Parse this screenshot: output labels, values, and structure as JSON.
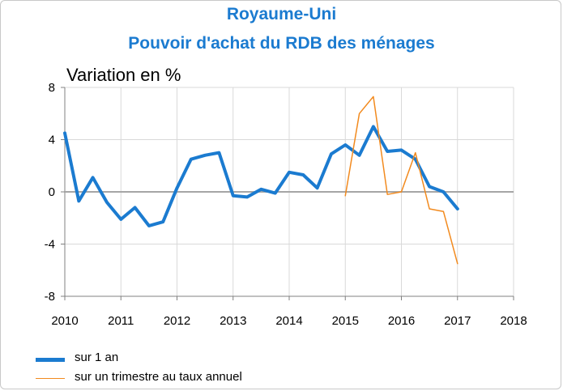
{
  "chart_data": {
    "type": "line",
    "title": "Royaume-Uni",
    "subtitle": "Pouvoir d'achat du RDB des ménages",
    "ylabel": "Variation en %",
    "xlim": [
      2010,
      2018
    ],
    "ylim": [
      -8,
      8
    ],
    "x_ticks": [
      "2010",
      "2011",
      "2012",
      "2013",
      "2014",
      "2015",
      "2016",
      "2017",
      "2018"
    ],
    "y_ticks": [
      "8",
      "4",
      "0",
      "-4",
      "-8"
    ],
    "grid": true,
    "legend_position": "bottom-left",
    "series": [
      {
        "name": "sur 1 an",
        "color": "#1b7bd0",
        "x": [
          2010.0,
          2010.25,
          2010.5,
          2010.75,
          2011.0,
          2011.25,
          2011.5,
          2011.75,
          2012.0,
          2012.25,
          2012.5,
          2012.75,
          2013.0,
          2013.25,
          2013.5,
          2013.75,
          2014.0,
          2014.25,
          2014.5,
          2014.75,
          2015.0,
          2015.25,
          2015.5,
          2015.75,
          2016.0,
          2016.25,
          2016.5,
          2016.75,
          2017.0
        ],
        "values": [
          4.5,
          -0.7,
          1.1,
          -0.8,
          -2.1,
          -1.2,
          -2.6,
          -2.3,
          0.3,
          2.5,
          2.8,
          3.0,
          -0.3,
          -0.4,
          0.2,
          -0.1,
          1.5,
          1.3,
          0.3,
          2.9,
          3.6,
          2.8,
          5.0,
          3.1,
          3.2,
          2.5,
          0.4,
          0.0,
          -1.3
        ]
      },
      {
        "name": "sur un trimestre au taux annuel",
        "color": "#f28a1e",
        "x": [
          2015.0,
          2015.25,
          2015.5,
          2015.75,
          2016.0,
          2016.25,
          2016.5,
          2016.75,
          2017.0
        ],
        "values": [
          -0.3,
          6.0,
          7.3,
          -0.2,
          0.0,
          3.0,
          -1.3,
          -1.5,
          -5.5
        ]
      }
    ]
  }
}
